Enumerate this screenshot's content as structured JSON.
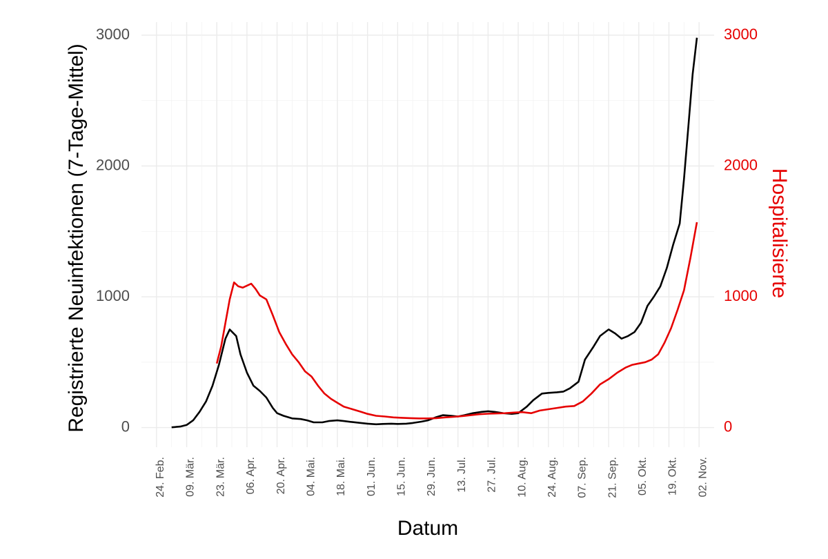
{
  "chart_data": {
    "type": "line",
    "xlabel": "Datum",
    "ylabel": "Registrierte Neuinfektionen (7-Tage-Mittel)",
    "y2label": "Hospitalisierte",
    "xlim": [
      "2020-02-17",
      "2020-11-09"
    ],
    "ylim": [
      -150,
      3100
    ],
    "y2lim": [
      -150,
      3100
    ],
    "grid": true,
    "legend": "none",
    "x_tick_labels": [
      "24. Feb.",
      "09. Mär.",
      "23. Mär.",
      "06. Apr.",
      "20. Apr.",
      "04. Mai.",
      "18. Mai.",
      "01. Jun.",
      "15. Jun.",
      "29. Jun.",
      "13. Jul.",
      "27. Jul.",
      "10. Aug.",
      "24. Aug.",
      "07. Sep.",
      "21. Sep.",
      "05. Okt.",
      "19. Okt.",
      "02. Nov."
    ],
    "x_tick_dates": [
      "2020-02-24",
      "2020-03-09",
      "2020-03-23",
      "2020-04-06",
      "2020-04-20",
      "2020-05-04",
      "2020-05-18",
      "2020-06-01",
      "2020-06-15",
      "2020-06-29",
      "2020-07-13",
      "2020-07-27",
      "2020-08-10",
      "2020-08-24",
      "2020-09-07",
      "2020-09-21",
      "2020-10-05",
      "2020-10-19",
      "2020-11-02"
    ],
    "y_ticks": [
      "0",
      "1000",
      "2000",
      "3000"
    ],
    "y2_ticks": [
      "0",
      "1000",
      "2000",
      "3000"
    ],
    "y_tick_values": [
      0,
      1000,
      2000,
      3000
    ],
    "y2_tick_values": [
      0,
      1000,
      2000,
      3000
    ],
    "series": [
      {
        "axis": "left",
        "color": "#000000",
        "points": [
          [
            "2020-03-02",
            2
          ],
          [
            "2020-03-06",
            8
          ],
          [
            "2020-03-09",
            20
          ],
          [
            "2020-03-12",
            55
          ],
          [
            "2020-03-15",
            120
          ],
          [
            "2020-03-18",
            200
          ],
          [
            "2020-03-21",
            320
          ],
          [
            "2020-03-24",
            480
          ],
          [
            "2020-03-27",
            680
          ],
          [
            "2020-03-29",
            750
          ],
          [
            "2020-04-01",
            700
          ],
          [
            "2020-04-03",
            560
          ],
          [
            "2020-04-06",
            420
          ],
          [
            "2020-04-09",
            320
          ],
          [
            "2020-04-12",
            280
          ],
          [
            "2020-04-15",
            230
          ],
          [
            "2020-04-18",
            150
          ],
          [
            "2020-04-20",
            110
          ],
          [
            "2020-04-23",
            90
          ],
          [
            "2020-04-27",
            70
          ],
          [
            "2020-05-01",
            65
          ],
          [
            "2020-05-04",
            55
          ],
          [
            "2020-05-07",
            40
          ],
          [
            "2020-05-11",
            40
          ],
          [
            "2020-05-14",
            50
          ],
          [
            "2020-05-18",
            55
          ],
          [
            "2020-05-21",
            50
          ],
          [
            "2020-05-25",
            42
          ],
          [
            "2020-05-29",
            35
          ],
          [
            "2020-06-01",
            30
          ],
          [
            "2020-06-05",
            25
          ],
          [
            "2020-06-08",
            28
          ],
          [
            "2020-06-12",
            30
          ],
          [
            "2020-06-15",
            28
          ],
          [
            "2020-06-19",
            30
          ],
          [
            "2020-06-22",
            35
          ],
          [
            "2020-06-26",
            45
          ],
          [
            "2020-06-29",
            55
          ],
          [
            "2020-07-03",
            80
          ],
          [
            "2020-07-06",
            95
          ],
          [
            "2020-07-10",
            90
          ],
          [
            "2020-07-13",
            85
          ],
          [
            "2020-07-16",
            95
          ],
          [
            "2020-07-20",
            110
          ],
          [
            "2020-07-24",
            120
          ],
          [
            "2020-07-27",
            125
          ],
          [
            "2020-07-30",
            120
          ],
          [
            "2020-08-03",
            110
          ],
          [
            "2020-08-07",
            105
          ],
          [
            "2020-08-10",
            110
          ],
          [
            "2020-08-14",
            160
          ],
          [
            "2020-08-17",
            210
          ],
          [
            "2020-08-21",
            260
          ],
          [
            "2020-08-24",
            265
          ],
          [
            "2020-08-28",
            270
          ],
          [
            "2020-08-31",
            275
          ],
          [
            "2020-09-03",
            300
          ],
          [
            "2020-09-07",
            350
          ],
          [
            "2020-09-10",
            520
          ],
          [
            "2020-09-14",
            620
          ],
          [
            "2020-09-17",
            700
          ],
          [
            "2020-09-21",
            750
          ],
          [
            "2020-09-24",
            720
          ],
          [
            "2020-09-27",
            680
          ],
          [
            "2020-09-30",
            700
          ],
          [
            "2020-10-03",
            730
          ],
          [
            "2020-10-06",
            800
          ],
          [
            "2020-10-09",
            930
          ],
          [
            "2020-10-12",
            1000
          ],
          [
            "2020-10-15",
            1080
          ],
          [
            "2020-10-18",
            1220
          ],
          [
            "2020-10-21",
            1400
          ],
          [
            "2020-10-24",
            1560
          ],
          [
            "2020-10-26",
            1900
          ],
          [
            "2020-10-28",
            2300
          ],
          [
            "2020-10-30",
            2700
          ],
          [
            "2020-11-01",
            2980
          ]
        ]
      },
      {
        "axis": "right",
        "color": "#e60000",
        "points": [
          [
            "2020-03-23",
            490
          ],
          [
            "2020-03-25",
            620
          ],
          [
            "2020-03-27",
            800
          ],
          [
            "2020-03-29",
            980
          ],
          [
            "2020-03-31",
            1110
          ],
          [
            "2020-04-02",
            1080
          ],
          [
            "2020-04-04",
            1070
          ],
          [
            "2020-04-06",
            1085
          ],
          [
            "2020-04-08",
            1100
          ],
          [
            "2020-04-10",
            1060
          ],
          [
            "2020-04-12",
            1010
          ],
          [
            "2020-04-15",
            980
          ],
          [
            "2020-04-18",
            860
          ],
          [
            "2020-04-21",
            730
          ],
          [
            "2020-04-24",
            640
          ],
          [
            "2020-04-27",
            560
          ],
          [
            "2020-04-30",
            500
          ],
          [
            "2020-05-03",
            430
          ],
          [
            "2020-05-06",
            390
          ],
          [
            "2020-05-09",
            320
          ],
          [
            "2020-05-12",
            260
          ],
          [
            "2020-05-15",
            220
          ],
          [
            "2020-05-18",
            190
          ],
          [
            "2020-05-21",
            160
          ],
          [
            "2020-05-25",
            140
          ],
          [
            "2020-05-29",
            120
          ],
          [
            "2020-06-01",
            105
          ],
          [
            "2020-06-05",
            90
          ],
          [
            "2020-06-09",
            85
          ],
          [
            "2020-06-13",
            78
          ],
          [
            "2020-06-17",
            75
          ],
          [
            "2020-06-21",
            72
          ],
          [
            "2020-06-25",
            70
          ],
          [
            "2020-06-29",
            70
          ],
          [
            "2020-07-03",
            72
          ],
          [
            "2020-07-07",
            78
          ],
          [
            "2020-07-11",
            82
          ],
          [
            "2020-07-15",
            88
          ],
          [
            "2020-07-19",
            95
          ],
          [
            "2020-07-23",
            102
          ],
          [
            "2020-07-27",
            106
          ],
          [
            "2020-07-31",
            108
          ],
          [
            "2020-08-04",
            110
          ],
          [
            "2020-08-08",
            115
          ],
          [
            "2020-08-12",
            118
          ],
          [
            "2020-08-16",
            110
          ],
          [
            "2020-08-20",
            130
          ],
          [
            "2020-08-24",
            140
          ],
          [
            "2020-08-28",
            150
          ],
          [
            "2020-09-01",
            160
          ],
          [
            "2020-09-05",
            165
          ],
          [
            "2020-09-09",
            200
          ],
          [
            "2020-09-13",
            260
          ],
          [
            "2020-09-17",
            330
          ],
          [
            "2020-09-21",
            370
          ],
          [
            "2020-09-25",
            420
          ],
          [
            "2020-09-29",
            460
          ],
          [
            "2020-10-02",
            480
          ],
          [
            "2020-10-05",
            490
          ],
          [
            "2020-10-08",
            500
          ],
          [
            "2020-10-11",
            520
          ],
          [
            "2020-10-14",
            560
          ],
          [
            "2020-10-17",
            650
          ],
          [
            "2020-10-20",
            760
          ],
          [
            "2020-10-23",
            900
          ],
          [
            "2020-10-26",
            1050
          ],
          [
            "2020-10-29",
            1300
          ],
          [
            "2020-11-01",
            1570
          ]
        ]
      }
    ]
  }
}
